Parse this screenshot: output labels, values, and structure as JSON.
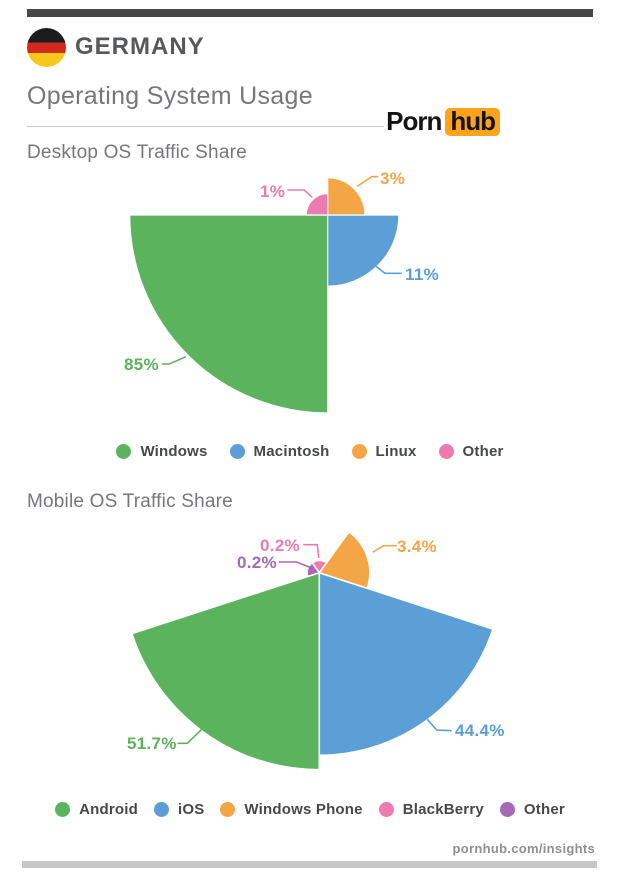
{
  "page": {
    "country": "GERMANY",
    "flag": {
      "stripes": [
        "#1c1c1c",
        "#d3291e",
        "#f6c81c"
      ]
    },
    "title": "Operating System Usage",
    "logo": {
      "part1": "Porn",
      "part2": "hub",
      "accent": "#ffa31a"
    },
    "footer_url": "pornhub.com/insights"
  },
  "chart_data": [
    {
      "type": "pie",
      "variant": "equal-angle-radial-pie (each slice 90°, radius ∝ √value, placed counterclockwise from south)",
      "title": "Desktop OS Traffic Share",
      "categories": [
        "Windows",
        "Macintosh",
        "Linux",
        "Other"
      ],
      "values": [
        85,
        11,
        3,
        1
      ],
      "labels": [
        "85%",
        "11%",
        "3%",
        "1%"
      ],
      "colors": [
        "#5cb35e",
        "#5b9fd6",
        "#f4a545",
        "#ee7bb0"
      ],
      "legend_position": "bottom"
    },
    {
      "type": "pie",
      "variant": "equal-angle-radial-pie (each slice 72°, radius ∝ √value, placed counterclockwise from south)",
      "title": "Mobile OS Traffic Share",
      "categories": [
        "Android",
        "iOS",
        "Windows Phone",
        "BlackBerry",
        "Other"
      ],
      "values": [
        51.7,
        44.4,
        3.4,
        0.2,
        0.2
      ],
      "labels": [
        "51.7%",
        "44.4%",
        "3.4%",
        "0.2%",
        "0.2%"
      ],
      "colors": [
        "#5cb35e",
        "#5b9fd6",
        "#f4a545",
        "#ee7bb0",
        "#a569b5"
      ],
      "legend_position": "bottom"
    }
  ]
}
